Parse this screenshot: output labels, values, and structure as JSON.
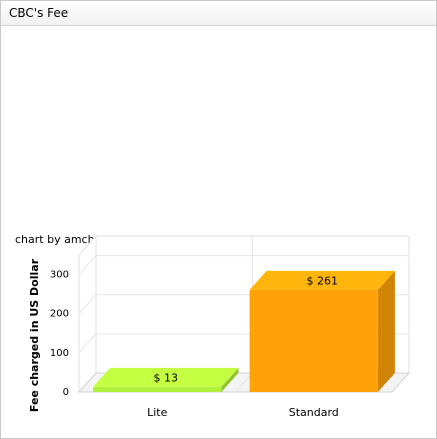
{
  "panel": {
    "title": "CBC's Fee"
  },
  "credit": "chart by amcharts.com",
  "colors": {
    "bar_lite": "#b0f03a",
    "bar_standard": "#ffa20a"
  },
  "chart_data": {
    "type": "bar",
    "title": "",
    "xlabel": "",
    "ylabel": "Fee charged in US Dollar",
    "categories": [
      "Lite",
      "Standard"
    ],
    "values": [
      13,
      261
    ],
    "data_labels": [
      "$ 13",
      "$ 261"
    ],
    "ylim": [
      0,
      350
    ],
    "yticks": [
      0,
      100,
      200,
      300
    ],
    "grid": true,
    "three_d": true
  }
}
